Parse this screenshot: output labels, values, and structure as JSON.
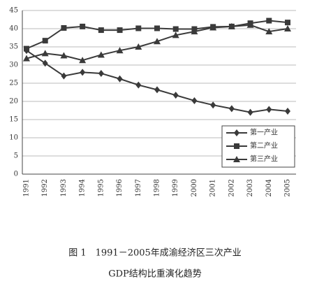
{
  "chart_data": {
    "type": "line",
    "caption": [
      "图 1　1991－2005年成渝经济区三次产业",
      "GDP结构比重演化趋势"
    ],
    "categories": [
      "1991",
      "1992",
      "1993",
      "1994",
      "1995",
      "1996",
      "1997",
      "1998",
      "1999",
      "2000",
      "2001",
      "2002",
      "2003",
      "2004",
      "2005"
    ],
    "series": [
      {
        "name": "第一产业",
        "color": "#3a3a3a",
        "marker": "diamond",
        "values": [
          34,
          30.5,
          27,
          28,
          27.7,
          26.2,
          24.5,
          23.2,
          21.7,
          20.2,
          19,
          18,
          17,
          17.8,
          17.3
        ]
      },
      {
        "name": "第二产业",
        "color": "#3a3a3a",
        "marker": "square",
        "values": [
          34.5,
          36.7,
          40.2,
          40.6,
          39.6,
          39.6,
          40.1,
          40.1,
          39.9,
          39.9,
          40.5,
          40.6,
          41.5,
          42.2,
          41.7
        ]
      },
      {
        "name": "第三产业",
        "color": "#3a3a3a",
        "marker": "triangle",
        "values": [
          31.8,
          33.2,
          32.6,
          31.3,
          32.8,
          34,
          35,
          36.5,
          38.2,
          39.2,
          40.3,
          40.6,
          41,
          39.2,
          40
        ]
      }
    ],
    "ylim": [
      0,
      45
    ],
    "yticks": [
      0,
      5,
      10,
      15,
      20,
      25,
      30,
      35,
      40,
      45
    ],
    "grid": true,
    "legend": "lower right"
  }
}
